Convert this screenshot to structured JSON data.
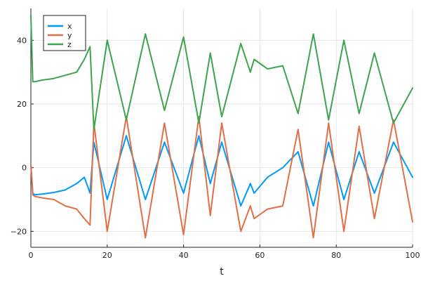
{
  "chart_data": {
    "type": "line",
    "title": "",
    "xlabel": "t",
    "ylabel": "",
    "xlim": [
      0,
      100
    ],
    "ylim": [
      -25,
      50
    ],
    "grid": true,
    "legend_position": "top-left",
    "x_ticks": [
      0,
      20,
      40,
      60,
      80,
      100
    ],
    "x_tick_labels": [
      "0",
      "20",
      "40",
      "60",
      "80",
      "100"
    ],
    "y_ticks": [
      -20,
      0,
      20,
      40
    ],
    "y_tick_labels": [
      "−20",
      "0",
      "20",
      "40"
    ],
    "x": [
      0,
      0.5,
      1,
      3,
      6,
      9,
      12,
      14,
      15.5,
      16.5,
      20,
      25,
      30,
      35,
      40,
      44,
      47,
      50,
      55,
      57.5,
      58.5,
      62,
      66,
      70,
      74,
      78,
      82,
      86,
      90,
      95,
      100
    ],
    "series": [
      {
        "name": "x",
        "color": "#009AFA",
        "values": [
          1,
          -8,
          -8.5,
          -8.3,
          -7.8,
          -7,
          -5,
          -3,
          -8,
          8,
          -10,
          10,
          -10,
          8,
          -8,
          10,
          -5,
          8,
          -12,
          -5,
          -8,
          -3,
          0,
          5,
          -12,
          8,
          -10,
          5,
          -8,
          8,
          -3
        ]
      },
      {
        "name": "y",
        "color": "#E26F46",
        "values": [
          1,
          -8.5,
          -9,
          -9.5,
          -10,
          -12,
          -13,
          -16,
          -18,
          14,
          -20,
          16,
          -22,
          14,
          -21,
          16,
          -15,
          14,
          -20,
          -12,
          -16,
          -13,
          -12,
          12,
          -22,
          14,
          -20,
          13,
          -16,
          15,
          -17
        ]
      },
      {
        "name": "z",
        "color": "#3DA44D",
        "values": [
          48,
          27,
          27,
          27.5,
          28,
          29,
          30,
          34,
          38,
          12,
          40,
          15,
          42,
          18,
          41,
          14,
          36,
          16,
          39,
          30,
          34,
          31,
          32,
          17,
          42,
          15,
          40,
          17,
          36,
          14,
          25
        ]
      }
    ]
  }
}
